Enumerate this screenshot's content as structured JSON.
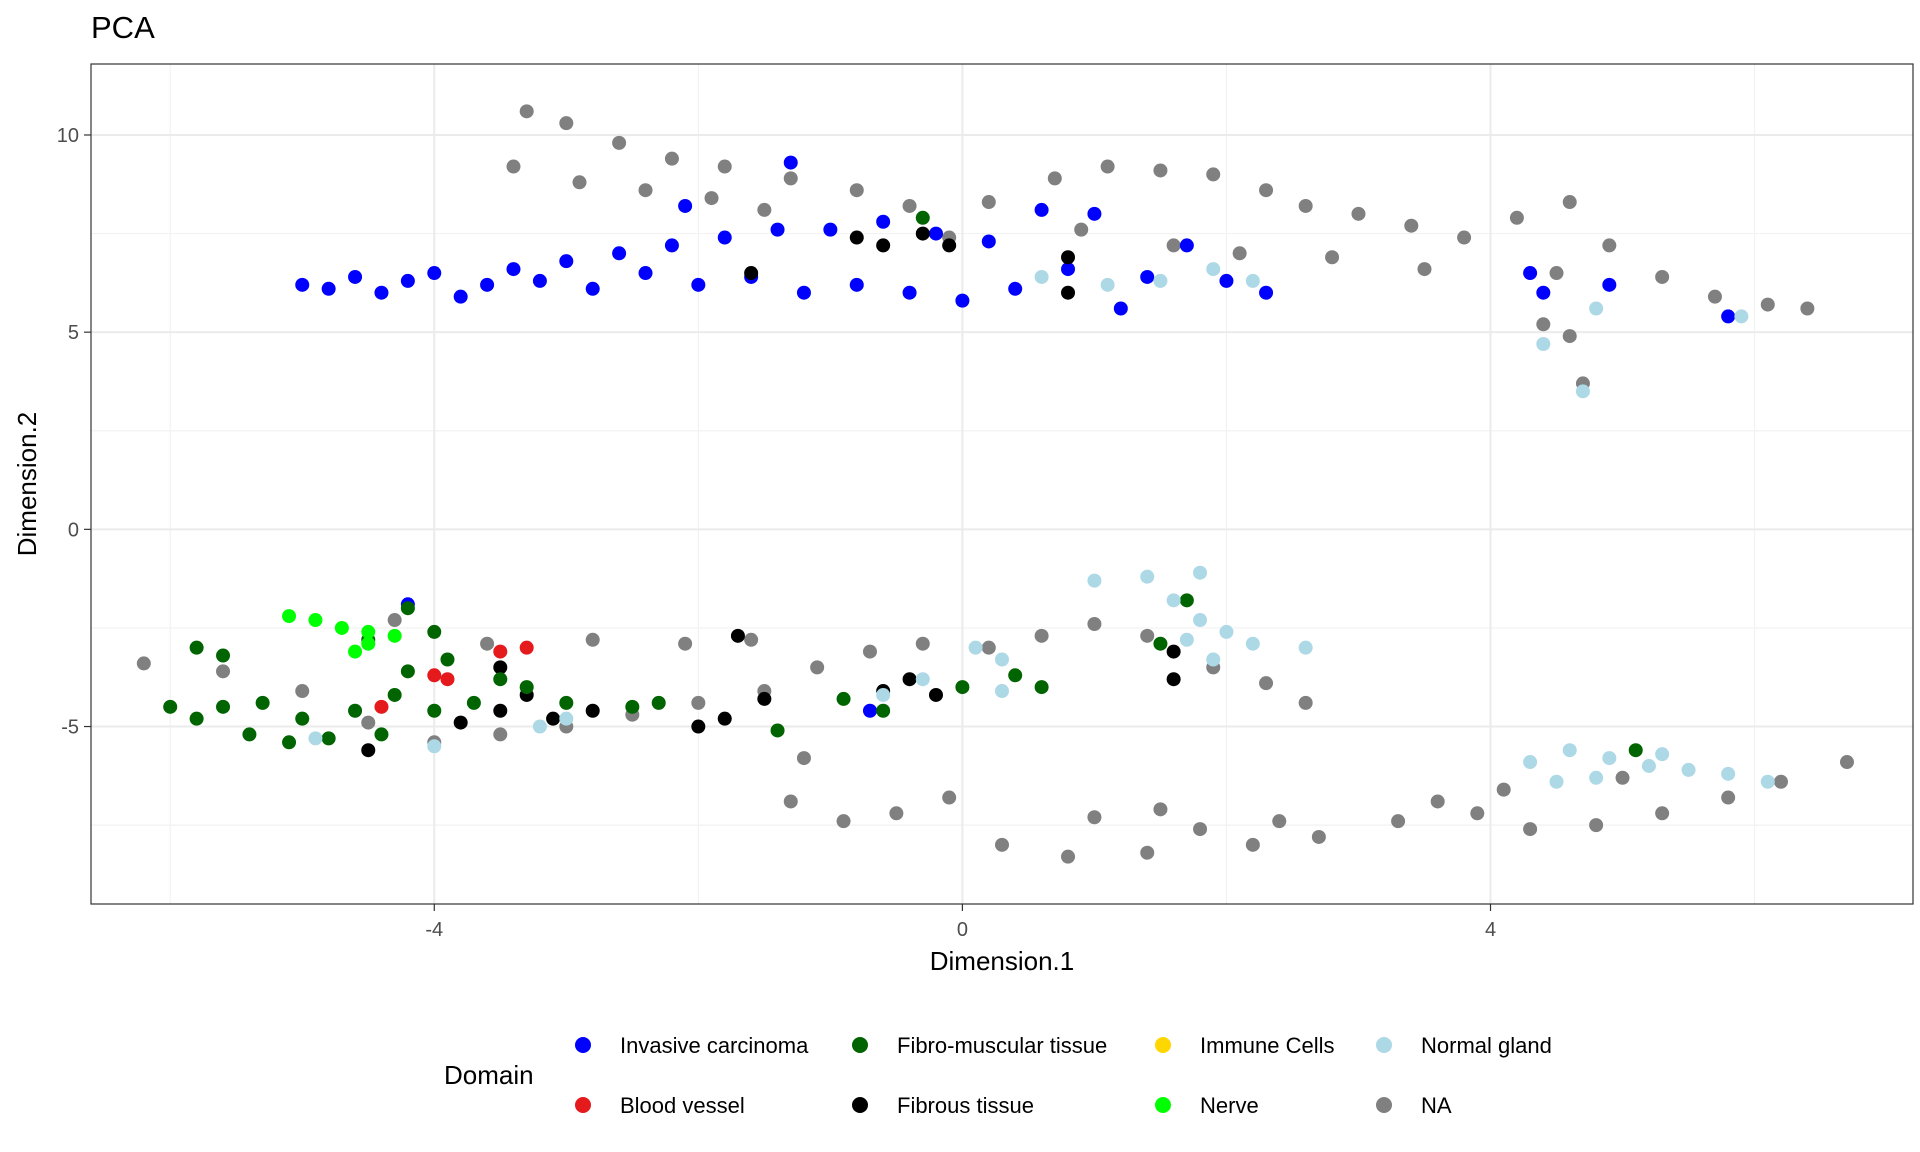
{
  "chart_data": {
    "type": "scatter",
    "title": "PCA",
    "xlabel": "Dimension.1",
    "ylabel": "Dimension.2",
    "xlim": [
      -6.6,
      7.2
    ],
    "ylim": [
      -9.5,
      11.8
    ],
    "x_ticks": [
      -4,
      0,
      4
    ],
    "x_tick_labels": [
      "-4",
      "0",
      "4"
    ],
    "y_ticks": [
      -5,
      0,
      5,
      10
    ],
    "y_tick_labels": [
      "-5",
      "0",
      "5",
      "10"
    ],
    "grid": true,
    "legend": {
      "title": "Domain",
      "position": "bottom",
      "entries": [
        {
          "label": "Invasive carcinoma",
          "color": "#0000FF"
        },
        {
          "label": "Blood vessel",
          "color": "#E41A1C"
        },
        {
          "label": "Fibro-muscular tissue",
          "color": "#006400"
        },
        {
          "label": "Fibrous tissue",
          "color": "#000000"
        },
        {
          "label": "Immune Cells",
          "color": "#FFD700"
        },
        {
          "label": "Nerve",
          "color": "#00FF00"
        },
        {
          "label": "Normal gland",
          "color": "#ADD8E6"
        },
        {
          "label": "NA",
          "color": "#808080"
        }
      ]
    },
    "series": [
      {
        "name": "NA",
        "color": "#808080",
        "points": [
          [
            -3.3,
            10.6
          ],
          [
            -3.0,
            10.3
          ],
          [
            -2.6,
            9.8
          ],
          [
            -2.2,
            9.4
          ],
          [
            -1.8,
            9.2
          ],
          [
            -1.3,
            8.9
          ],
          [
            -0.8,
            8.6
          ],
          [
            -3.4,
            9.2
          ],
          [
            -2.9,
            8.8
          ],
          [
            -2.4,
            8.6
          ],
          [
            -1.9,
            8.4
          ],
          [
            -1.5,
            8.1
          ],
          [
            -0.4,
            8.2
          ],
          [
            0.2,
            8.3
          ],
          [
            0.7,
            8.9
          ],
          [
            1.1,
            9.2
          ],
          [
            1.5,
            9.1
          ],
          [
            1.9,
            9.0
          ],
          [
            2.3,
            8.6
          ],
          [
            2.6,
            8.2
          ],
          [
            3.0,
            8.0
          ],
          [
            3.4,
            7.7
          ],
          [
            3.8,
            7.4
          ],
          [
            4.2,
            7.9
          ],
          [
            4.6,
            8.3
          ],
          [
            4.9,
            7.2
          ],
          [
            5.3,
            6.4
          ],
          [
            5.7,
            5.9
          ],
          [
            6.1,
            5.7
          ],
          [
            6.4,
            5.6
          ],
          [
            4.4,
            5.2
          ],
          [
            4.6,
            4.9
          ],
          [
            4.7,
            3.7
          ],
          [
            4.5,
            6.5
          ],
          [
            3.5,
            6.6
          ],
          [
            2.8,
            6.9
          ],
          [
            2.1,
            7.0
          ],
          [
            1.6,
            7.2
          ],
          [
            0.9,
            7.6
          ],
          [
            -0.1,
            7.4
          ],
          [
            -6.2,
            -3.4
          ],
          [
            -5.6,
            -3.6
          ],
          [
            -5.0,
            -4.1
          ],
          [
            -4.5,
            -4.9
          ],
          [
            -4.0,
            -5.4
          ],
          [
            -3.5,
            -5.2
          ],
          [
            -3.0,
            -5.0
          ],
          [
            -2.5,
            -4.7
          ],
          [
            -2.0,
            -4.4
          ],
          [
            -1.5,
            -4.1
          ],
          [
            -1.1,
            -3.5
          ],
          [
            -0.7,
            -3.1
          ],
          [
            -0.3,
            -2.9
          ],
          [
            0.2,
            -3.0
          ],
          [
            0.6,
            -2.7
          ],
          [
            1.0,
            -2.4
          ],
          [
            1.4,
            -2.7
          ],
          [
            1.9,
            -3.5
          ],
          [
            2.3,
            -3.9
          ],
          [
            2.6,
            -4.4
          ],
          [
            -4.3,
            -2.3
          ],
          [
            -3.6,
            -2.9
          ],
          [
            -2.8,
            -2.8
          ],
          [
            -2.1,
            -2.9
          ],
          [
            -1.6,
            -2.8
          ],
          [
            -1.2,
            -5.8
          ],
          [
            -1.3,
            -6.9
          ],
          [
            -0.9,
            -7.4
          ],
          [
            -0.5,
            -7.2
          ],
          [
            -0.1,
            -6.8
          ],
          [
            0.3,
            -8.0
          ],
          [
            0.8,
            -8.3
          ],
          [
            1.4,
            -8.2
          ],
          [
            1.0,
            -7.3
          ],
          [
            1.5,
            -7.1
          ],
          [
            2.2,
            -8.0
          ],
          [
            2.7,
            -7.8
          ],
          [
            3.3,
            -7.4
          ],
          [
            3.9,
            -7.2
          ],
          [
            4.3,
            -7.6
          ],
          [
            4.8,
            -7.5
          ],
          [
            5.3,
            -7.2
          ],
          [
            5.8,
            -6.8
          ],
          [
            6.2,
            -6.4
          ],
          [
            6.7,
            -5.9
          ],
          [
            1.8,
            -7.6
          ],
          [
            2.4,
            -7.4
          ],
          [
            3.6,
            -6.9
          ],
          [
            4.1,
            -6.6
          ],
          [
            5.0,
            -6.3
          ]
        ]
      },
      {
        "name": "Invasive carcinoma",
        "color": "#0000FF",
        "points": [
          [
            -5.0,
            6.2
          ],
          [
            -4.8,
            6.1
          ],
          [
            -4.6,
            6.4
          ],
          [
            -4.4,
            6.0
          ],
          [
            -4.2,
            6.3
          ],
          [
            -4.0,
            6.5
          ],
          [
            -3.8,
            5.9
          ],
          [
            -3.6,
            6.2
          ],
          [
            -3.4,
            6.6
          ],
          [
            -3.2,
            6.3
          ],
          [
            -3.0,
            6.8
          ],
          [
            -2.8,
            6.1
          ],
          [
            -2.6,
            7.0
          ],
          [
            -2.4,
            6.5
          ],
          [
            -2.2,
            7.2
          ],
          [
            -2.0,
            6.2
          ],
          [
            -1.8,
            7.4
          ],
          [
            -1.6,
            6.4
          ],
          [
            -1.4,
            7.6
          ],
          [
            -1.2,
            6.0
          ],
          [
            -1.0,
            7.6
          ],
          [
            -0.8,
            6.2
          ],
          [
            -0.6,
            7.8
          ],
          [
            -0.4,
            6.0
          ],
          [
            -0.2,
            7.5
          ],
          [
            0.0,
            5.8
          ],
          [
            0.2,
            7.3
          ],
          [
            0.4,
            6.1
          ],
          [
            0.6,
            8.1
          ],
          [
            0.8,
            6.6
          ],
          [
            1.0,
            8.0
          ],
          [
            1.2,
            5.6
          ],
          [
            1.4,
            6.4
          ],
          [
            1.7,
            7.2
          ],
          [
            2.0,
            6.3
          ],
          [
            2.3,
            6.0
          ],
          [
            -1.3,
            9.3
          ],
          [
            -2.1,
            8.2
          ],
          [
            4.3,
            6.5
          ],
          [
            4.4,
            6.0
          ],
          [
            4.9,
            6.2
          ],
          [
            5.8,
            5.4
          ],
          [
            -4.2,
            -1.9
          ],
          [
            -0.7,
            -4.6
          ]
        ]
      },
      {
        "name": "Fibrous tissue",
        "color": "#000000",
        "points": [
          [
            -0.8,
            7.4
          ],
          [
            -0.6,
            7.2
          ],
          [
            -0.3,
            7.5
          ],
          [
            -0.1,
            7.2
          ],
          [
            0.8,
            6.0
          ],
          [
            0.8,
            6.9
          ],
          [
            -1.6,
            6.5
          ],
          [
            -4.5,
            -5.6
          ],
          [
            -3.8,
            -4.9
          ],
          [
            -3.5,
            -4.6
          ],
          [
            -3.3,
            -4.2
          ],
          [
            -3.1,
            -4.8
          ],
          [
            -2.8,
            -4.6
          ],
          [
            -2.0,
            -5.0
          ],
          [
            -1.8,
            -4.8
          ],
          [
            -1.7,
            -2.7
          ],
          [
            -1.5,
            -4.3
          ],
          [
            -0.6,
            -4.1
          ],
          [
            -0.4,
            -3.8
          ],
          [
            -0.2,
            -4.2
          ],
          [
            1.6,
            -3.1
          ],
          [
            1.6,
            -3.8
          ],
          [
            -3.5,
            -3.5
          ]
        ]
      },
      {
        "name": "Fibro-muscular tissue",
        "color": "#006400",
        "points": [
          [
            -5.8,
            -3.0
          ],
          [
            -5.6,
            -3.2
          ],
          [
            -6.0,
            -4.5
          ],
          [
            -5.8,
            -4.8
          ],
          [
            -5.6,
            -4.5
          ],
          [
            -5.4,
            -5.2
          ],
          [
            -5.3,
            -4.4
          ],
          [
            -5.1,
            -5.4
          ],
          [
            -5.0,
            -4.8
          ],
          [
            -4.8,
            -5.3
          ],
          [
            -4.6,
            -4.6
          ],
          [
            -4.4,
            -5.2
          ],
          [
            -4.3,
            -4.2
          ],
          [
            -4.2,
            -3.6
          ],
          [
            -4.0,
            -4.6
          ],
          [
            -3.9,
            -3.3
          ],
          [
            -3.7,
            -4.4
          ],
          [
            -3.5,
            -3.8
          ],
          [
            -4.5,
            -2.8
          ],
          [
            -4.0,
            -2.6
          ],
          [
            -3.3,
            -4.0
          ],
          [
            -3.0,
            -4.4
          ],
          [
            -2.5,
            -4.5
          ],
          [
            -2.3,
            -4.4
          ],
          [
            -1.4,
            -5.1
          ],
          [
            -0.9,
            -4.3
          ],
          [
            -0.6,
            -4.6
          ],
          [
            0.0,
            -4.0
          ],
          [
            0.4,
            -3.7
          ],
          [
            0.6,
            -4.0
          ],
          [
            -0.3,
            7.9
          ],
          [
            1.5,
            -2.9
          ],
          [
            1.7,
            -1.8
          ],
          [
            5.1,
            -5.6
          ],
          [
            -4.2,
            -2.0
          ]
        ]
      },
      {
        "name": "Blood vessel",
        "color": "#E41A1C",
        "points": [
          [
            -3.3,
            -3.0
          ],
          [
            -3.5,
            -3.1
          ],
          [
            -4.0,
            -3.7
          ],
          [
            -3.9,
            -3.8
          ],
          [
            -4.4,
            -4.5
          ]
        ]
      },
      {
        "name": "Nerve",
        "color": "#00FF00",
        "points": [
          [
            -5.1,
            -2.2
          ],
          [
            -4.9,
            -2.3
          ],
          [
            -4.7,
            -2.5
          ],
          [
            -4.5,
            -2.6
          ],
          [
            -4.3,
            -2.7
          ],
          [
            -4.6,
            -3.1
          ],
          [
            -4.5,
            -2.9
          ]
        ]
      },
      {
        "name": "Normal gland",
        "color": "#ADD8E6",
        "points": [
          [
            0.6,
            6.4
          ],
          [
            1.1,
            6.2
          ],
          [
            1.5,
            6.3
          ],
          [
            1.9,
            6.6
          ],
          [
            2.2,
            6.3
          ],
          [
            4.7,
            3.5
          ],
          [
            4.8,
            5.6
          ],
          [
            5.9,
            5.4
          ],
          [
            4.4,
            4.7
          ],
          [
            1.0,
            -1.3
          ],
          [
            1.4,
            -1.2
          ],
          [
            1.8,
            -1.1
          ],
          [
            1.6,
            -1.8
          ],
          [
            1.8,
            -2.3
          ],
          [
            2.0,
            -2.6
          ],
          [
            2.2,
            -2.9
          ],
          [
            2.6,
            -3.0
          ],
          [
            1.9,
            -3.3
          ],
          [
            1.7,
            -2.8
          ],
          [
            0.1,
            -3.0
          ],
          [
            0.3,
            -3.3
          ],
          [
            -0.3,
            -3.8
          ],
          [
            -0.6,
            -4.2
          ],
          [
            0.3,
            -4.1
          ],
          [
            -4.9,
            -5.3
          ],
          [
            -3.2,
            -5.0
          ],
          [
            -4.0,
            -5.5
          ],
          [
            -3.0,
            -4.8
          ],
          [
            4.3,
            -5.9
          ],
          [
            4.6,
            -5.6
          ],
          [
            4.9,
            -5.8
          ],
          [
            5.2,
            -6.0
          ],
          [
            5.5,
            -6.1
          ],
          [
            5.8,
            -6.2
          ],
          [
            6.1,
            -6.4
          ],
          [
            4.8,
            -6.3
          ],
          [
            4.5,
            -6.4
          ],
          [
            5.3,
            -5.7
          ]
        ]
      }
    ]
  }
}
